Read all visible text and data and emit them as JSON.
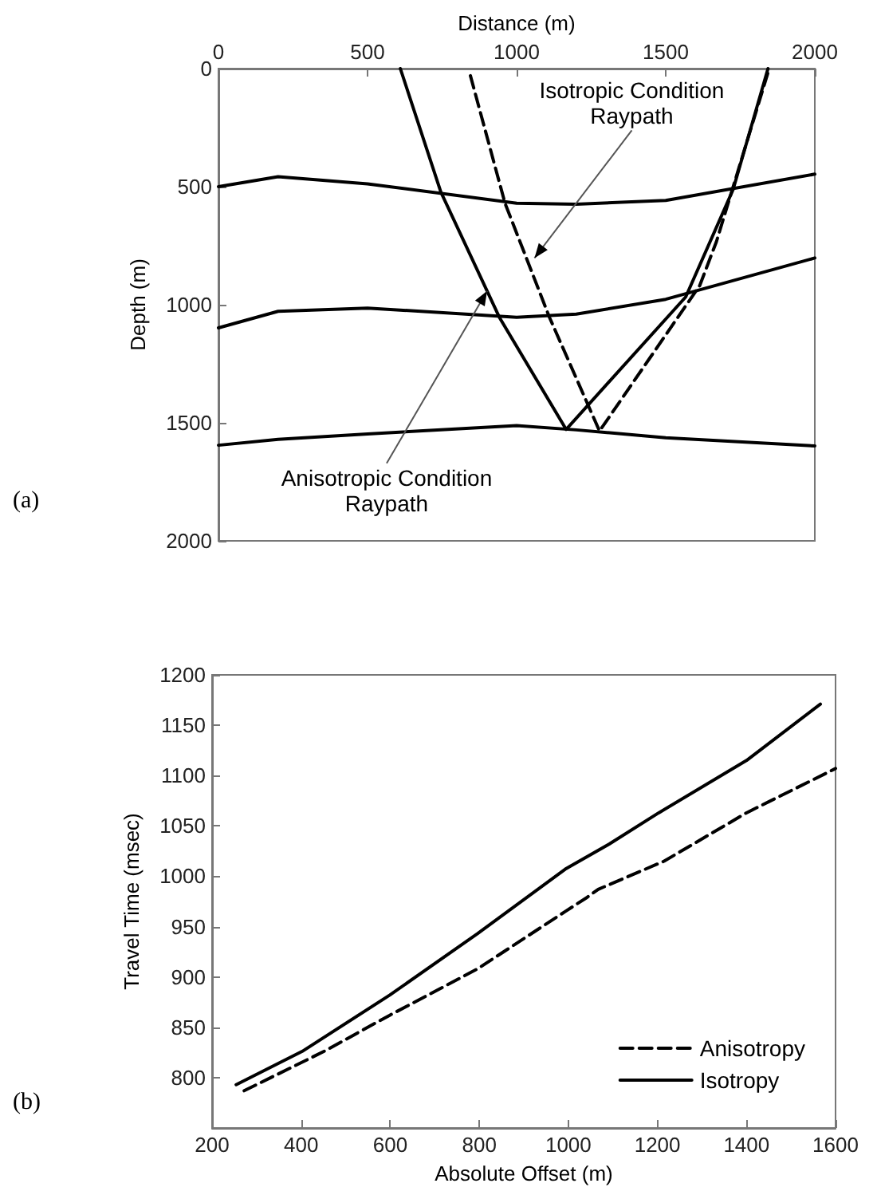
{
  "chart_data": [
    {
      "type": "line",
      "xlabel": "Distance (m)",
      "ylabel": "Depth (m)",
      "xlim": [
        0,
        2000
      ],
      "xticks": [
        0,
        500,
        1000,
        1500,
        2000
      ],
      "ylim": [
        2000,
        0
      ],
      "yticks": [
        0,
        500,
        1000,
        1500,
        2000
      ],
      "grid": false,
      "legend": false,
      "marker": "none",
      "annotations": [
        "(a)",
        {
          "text": "Isotropic Condition\nRaypath",
          "x": 1060,
          "y": 802
        },
        {
          "text": "Anisotropic Condition\nRaypath",
          "x": 901,
          "y": 942
        }
      ],
      "series": [
        {
          "color": "#000000",
          "line_style": "solid",
          "x": [
            0,
            200,
            500,
            1000,
            1200,
            1500,
            2000
          ],
          "values": [
            500,
            458,
            488,
            570,
            574,
            558,
            447
          ]
        },
        {
          "color": "#000000",
          "line_style": "solid",
          "x": [
            0,
            200,
            500,
            1000,
            1200,
            1500,
            2000
          ],
          "values": [
            1098,
            1028,
            1014,
            1053,
            1040,
            977,
            802
          ]
        },
        {
          "color": "#000000",
          "line_style": "solid",
          "x": [
            0,
            200,
            500,
            1000,
            1200,
            1500,
            2000
          ],
          "values": [
            1595,
            1570,
            1547,
            1512,
            1530,
            1563,
            1598
          ]
        },
        {
          "color": "#000000",
          "line_style": "solid",
          "x": [
            610,
            746,
            942,
            1166,
            1567,
            1726,
            1843
          ],
          "values": [
            0,
            523,
            1053,
            1528,
            967,
            512,
            0
          ]
        },
        {
          "color": "#000000",
          "line_style": "dashed",
          "x": [
            845,
            961,
            1110,
            1278,
            1614,
            1670,
            1847
          ],
          "values": [
            30,
            570,
            1053,
            1535,
            919,
            733,
            0
          ]
        }
      ]
    },
    {
      "type": "line",
      "xlabel": "Absolute Offset (m)",
      "ylabel": "Travel Time (msec)",
      "xlim": [
        200,
        1600
      ],
      "xticks": [
        200,
        400,
        600,
        800,
        1000,
        1200,
        1400,
        1600
      ],
      "ylim": [
        750,
        1200
      ],
      "yticks": [
        800,
        850,
        900,
        950,
        1000,
        1050,
        1100,
        1150,
        1200
      ],
      "grid": false,
      "legend": "bottom right",
      "marker": "none",
      "annotations": [
        "(b)"
      ],
      "series": [
        {
          "name": "Anisotropy",
          "color": "#000000",
          "line_style": "dashed",
          "x": [
            272,
            451,
            599,
            796,
            993,
            1042,
            1067,
            1215,
            1400,
            1600
          ],
          "values": [
            787,
            826,
            862,
            908,
            965,
            979,
            987,
            1015,
            1063,
            1107
          ]
        },
        {
          "name": "Isotropy",
          "color": "#000000",
          "line_style": "solid",
          "x": [
            254,
            402,
            599,
            796,
            993,
            1092,
            1203,
            1400,
            1566
          ],
          "values": [
            793,
            826,
            882,
            943,
            1007,
            1032,
            1063,
            1115,
            1171
          ]
        }
      ]
    }
  ]
}
